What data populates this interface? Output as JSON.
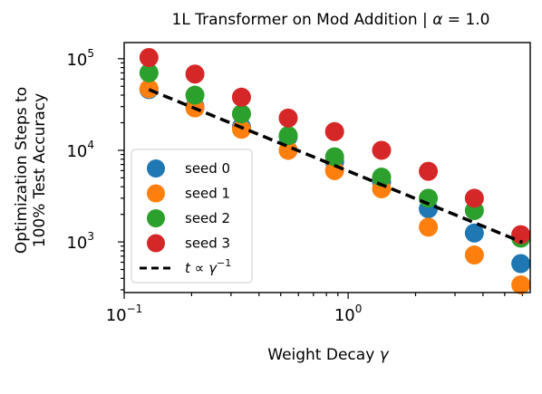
{
  "chart_data": {
    "type": "scatter",
    "title_prefix": "1L Transformer on Mod Addition | ",
    "title_alpha": "α",
    "title_suffix": " = 1.0",
    "xlabel": "Weight Decay",
    "xlabel_symbol": "γ",
    "ylabel_line1": "Optimization Steps to",
    "ylabel_line2": "100% Test Accuracy",
    "x_scale": "log",
    "y_scale": "log",
    "xlim": [
      0.1,
      6.5
    ],
    "ylim": [
      280,
      150000
    ],
    "x_ticks": [
      {
        "value": 0.1,
        "base": "10",
        "exp": "−1"
      },
      {
        "value": 1,
        "base": "10",
        "exp": "0"
      }
    ],
    "y_ticks": [
      {
        "value": 1000,
        "base": "10",
        "exp": "3"
      },
      {
        "value": 10000,
        "base": "10",
        "exp": "4"
      },
      {
        "value": 100000,
        "base": "10",
        "exp": "5"
      }
    ],
    "legend_position": "lower-left",
    "x": [
      0.129,
      0.207,
      0.334,
      0.54,
      0.87,
      1.41,
      2.28,
      3.66,
      5.9
    ],
    "series": [
      {
        "name": "seed 0",
        "color": "#1f77b4",
        "values": [
          46000,
          30000,
          18000,
          14000,
          7500,
          4500,
          2300,
          1250,
          580
        ]
      },
      {
        "name": "seed 1",
        "color": "#ff7f0e",
        "values": [
          47000,
          29000,
          17000,
          10000,
          6000,
          3800,
          1450,
          720,
          340
        ]
      },
      {
        "name": "seed 2",
        "color": "#2ca02c",
        "values": [
          70000,
          40000,
          25000,
          14500,
          8500,
          5100,
          3000,
          2200,
          1100
        ]
      },
      {
        "name": "seed 3",
        "color": "#d62728",
        "values": [
          103000,
          68000,
          38000,
          22500,
          16000,
          10000,
          5900,
          3000,
          1200
        ]
      }
    ],
    "fit_line": {
      "label_t": "t",
      "label_prop": " ∝ ",
      "label_gamma": "γ",
      "label_exp": "−1",
      "x": [
        0.129,
        6.0
      ],
      "y": [
        46000,
        990
      ],
      "style": "dashed",
      "color": "#000000"
    }
  }
}
